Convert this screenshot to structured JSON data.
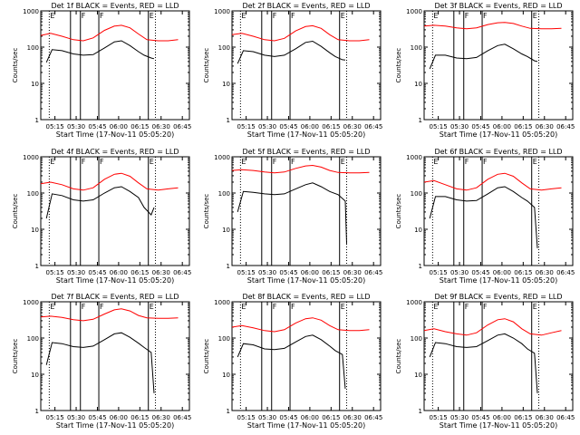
{
  "figure": {
    "start_time_label": "Start Time (17-Nov-11 05:05:20)"
  },
  "chart_data": [
    {
      "type": "line",
      "detector": "1f",
      "title": "Det 1f BLACK = Events, RED = LLD",
      "xlabel": "Start Time (17-Nov-11 05:05:20)",
      "ylabel": "Counts/sec",
      "yscale": "log",
      "ylim": [
        1,
        1000
      ],
      "yticks": [
        "1",
        "10",
        "100",
        "1000"
      ],
      "xticks": [
        "05:15",
        "05:30",
        "05:45",
        "06:00",
        "06:15",
        "06:30",
        "06:45"
      ],
      "region_markers": [
        "E",
        "F",
        "F",
        "E"
      ],
      "series": [
        {
          "name": "Events",
          "color": "#000000",
          "x": [
            "05:09",
            "05:13",
            "05:20",
            "05:28",
            "05:35",
            "05:42",
            "05:50",
            "05:57",
            "06:02",
            "06:08",
            "06:14",
            "06:18",
            "06:23",
            "06:25"
          ],
          "y": [
            38,
            85,
            80,
            65,
            60,
            62,
            95,
            140,
            150,
            110,
            75,
            60,
            50,
            48
          ]
        },
        {
          "name": "LLD",
          "color": "#ff0000",
          "x": [
            "05:05",
            "05:12",
            "05:20",
            "05:28",
            "05:35",
            "05:42",
            "05:50",
            "05:57",
            "06:02",
            "06:08",
            "06:14",
            "06:20",
            "06:28",
            "06:35",
            "06:42"
          ],
          "y": [
            210,
            240,
            200,
            160,
            150,
            180,
            290,
            380,
            400,
            340,
            230,
            160,
            150,
            150,
            160
          ]
        }
      ]
    },
    {
      "type": "line",
      "detector": "2f",
      "title": "Det 2f BLACK = Events, RED = LLD",
      "xlabel": "Start Time (17-Nov-11 05:05:20)",
      "ylabel": "Counts/sec",
      "yscale": "log",
      "ylim": [
        1,
        1000
      ],
      "yticks": [
        "1",
        "10",
        "100",
        "1000"
      ],
      "xticks": [
        "05:15",
        "05:30",
        "05:45",
        "06:00",
        "06:15",
        "06:30",
        "06:45"
      ],
      "region_markers": [
        "E",
        "F",
        "F",
        "E"
      ],
      "series": [
        {
          "name": "Events",
          "color": "#000000",
          "x": [
            "05:09",
            "05:13",
            "05:20",
            "05:28",
            "05:35",
            "05:42",
            "05:50",
            "05:57",
            "06:02",
            "06:08",
            "06:14",
            "06:18",
            "06:23",
            "06:25"
          ],
          "y": [
            35,
            80,
            75,
            60,
            55,
            60,
            90,
            135,
            145,
            105,
            70,
            55,
            45,
            44
          ]
        },
        {
          "name": "LLD",
          "color": "#ff0000",
          "x": [
            "05:05",
            "05:12",
            "05:20",
            "05:28",
            "05:35",
            "05:42",
            "05:50",
            "05:57",
            "06:02",
            "06:08",
            "06:14",
            "06:20",
            "06:28",
            "06:35",
            "06:42"
          ],
          "y": [
            220,
            240,
            200,
            160,
            150,
            175,
            280,
            370,
            390,
            330,
            220,
            160,
            150,
            150,
            160
          ]
        }
      ]
    },
    {
      "type": "line",
      "detector": "3f",
      "title": "Det 3f BLACK = Events, RED = LLD",
      "xlabel": "Start Time (17-Nov-11 05:05:20)",
      "ylabel": "Counts/sec",
      "yscale": "log",
      "ylim": [
        1,
        1000
      ],
      "yticks": [
        "1",
        "10",
        "100",
        "1000"
      ],
      "xticks": [
        "05:15",
        "05:30",
        "05:45",
        "06:00",
        "06:15",
        "06:30",
        "06:45"
      ],
      "region_markers": [
        "E",
        "F",
        "F",
        "E"
      ],
      "series": [
        {
          "name": "Events",
          "color": "#000000",
          "x": [
            "05:09",
            "05:13",
            "05:20",
            "05:28",
            "05:35",
            "05:42",
            "05:50",
            "05:57",
            "06:02",
            "06:08",
            "06:14",
            "06:18",
            "06:23",
            "06:25"
          ],
          "y": [
            25,
            60,
            60,
            50,
            48,
            52,
            80,
            110,
            120,
            90,
            65,
            55,
            42,
            40
          ]
        },
        {
          "name": "LLD",
          "color": "#ff0000",
          "x": [
            "05:05",
            "05:12",
            "05:20",
            "05:28",
            "05:35",
            "05:42",
            "05:50",
            "05:57",
            "06:02",
            "06:08",
            "06:14",
            "06:20",
            "06:28",
            "06:35",
            "06:42"
          ],
          "y": [
            380,
            400,
            380,
            340,
            320,
            340,
            420,
            470,
            480,
            450,
            380,
            330,
            320,
            320,
            330
          ]
        }
      ]
    },
    {
      "type": "line",
      "detector": "4f",
      "title": "Det 4f BLACK = Events, RED = LLD",
      "xlabel": "Start Time (17-Nov-11 05:05:20)",
      "ylabel": "Counts/sec",
      "yscale": "log",
      "ylim": [
        1,
        1000
      ],
      "yticks": [
        "1",
        "10",
        "100",
        "1000"
      ],
      "xticks": [
        "05:15",
        "05:30",
        "05:45",
        "06:00",
        "06:15",
        "06:30",
        "06:45"
      ],
      "region_markers": [
        "E",
        "F",
        "F",
        "E"
      ],
      "series": [
        {
          "name": "Events",
          "color": "#000000",
          "x": [
            "05:09",
            "05:13",
            "05:20",
            "05:28",
            "05:35",
            "05:42",
            "05:50",
            "05:57",
            "06:02",
            "06:08",
            "06:14",
            "06:18",
            "06:23",
            "06:25"
          ],
          "y": [
            20,
            95,
            85,
            65,
            60,
            65,
            100,
            140,
            150,
            110,
            75,
            40,
            25,
            40
          ]
        },
        {
          "name": "LLD",
          "color": "#ff0000",
          "x": [
            "05:05",
            "05:12",
            "05:20",
            "05:28",
            "05:35",
            "05:42",
            "05:50",
            "05:57",
            "06:02",
            "06:08",
            "06:14",
            "06:20",
            "06:28",
            "06:35",
            "06:42"
          ],
          "y": [
            180,
            200,
            170,
            130,
            120,
            140,
            240,
            330,
            350,
            290,
            190,
            130,
            120,
            130,
            140
          ]
        }
      ]
    },
    {
      "type": "line",
      "detector": "5f",
      "title": "Det 5f BLACK = Events, RED = LLD",
      "xlabel": "Start Time (17-Nov-11 05:05:20)",
      "ylabel": "Counts/sec",
      "yscale": "log",
      "ylim": [
        1,
        1000
      ],
      "yticks": [
        "1",
        "10",
        "100",
        "1000"
      ],
      "xticks": [
        "05:15",
        "05:30",
        "05:45",
        "06:00",
        "06:15",
        "06:30",
        "06:45"
      ],
      "region_markers": [
        "E",
        "F",
        "F",
        "E"
      ],
      "series": [
        {
          "name": "Events",
          "color": "#000000",
          "x": [
            "05:09",
            "05:13",
            "05:20",
            "05:28",
            "05:35",
            "05:42",
            "05:50",
            "05:57",
            "06:02",
            "06:08",
            "06:14",
            "06:20",
            "06:25",
            "06:26"
          ],
          "y": [
            30,
            110,
            105,
            95,
            90,
            95,
            130,
            170,
            190,
            150,
            110,
            90,
            60,
            4
          ]
        },
        {
          "name": "LLD",
          "color": "#ff0000",
          "x": [
            "05:05",
            "05:12",
            "05:20",
            "05:28",
            "05:35",
            "05:42",
            "05:50",
            "05:57",
            "06:02",
            "06:08",
            "06:14",
            "06:20",
            "06:28",
            "06:35",
            "06:42"
          ],
          "y": [
            420,
            440,
            420,
            380,
            360,
            380,
            480,
            560,
            580,
            520,
            420,
            370,
            360,
            360,
            370
          ]
        }
      ]
    },
    {
      "type": "line",
      "detector": "6f",
      "title": "Det 6f BLACK = Events, RED = LLD",
      "xlabel": "Start Time (17-Nov-11 05:05:20)",
      "ylabel": "Counts/sec",
      "yscale": "log",
      "ylim": [
        1,
        1000
      ],
      "yticks": [
        "1",
        "10",
        "100",
        "1000"
      ],
      "xticks": [
        "05:15",
        "05:30",
        "05:45",
        "06:00",
        "06:15",
        "06:30",
        "06:45"
      ],
      "region_markers": [
        "E",
        "F",
        "F",
        "E"
      ],
      "series": [
        {
          "name": "Events",
          "color": "#000000",
          "x": [
            "05:09",
            "05:13",
            "05:20",
            "05:28",
            "05:35",
            "05:42",
            "05:50",
            "05:57",
            "06:02",
            "06:08",
            "06:14",
            "06:18",
            "06:23",
            "06:25"
          ],
          "y": [
            20,
            80,
            80,
            65,
            60,
            62,
            95,
            140,
            150,
            110,
            75,
            60,
            40,
            3
          ]
        },
        {
          "name": "LLD",
          "color": "#ff0000",
          "x": [
            "05:05",
            "05:12",
            "05:20",
            "05:28",
            "05:35",
            "05:42",
            "05:50",
            "05:57",
            "06:02",
            "06:08",
            "06:14",
            "06:20",
            "06:28",
            "06:35",
            "06:42"
          ],
          "y": [
            200,
            220,
            170,
            130,
            120,
            140,
            240,
            330,
            350,
            290,
            190,
            130,
            120,
            130,
            140
          ]
        }
      ]
    },
    {
      "type": "line",
      "detector": "7f",
      "title": "Det 7f BLACK = Events, RED = LLD",
      "xlabel": "Start Time (17-Nov-11 05:05:20)",
      "ylabel": "Counts/sec",
      "yscale": "log",
      "ylim": [
        1,
        1000
      ],
      "yticks": [
        "1",
        "10",
        "100",
        "1000"
      ],
      "xticks": [
        "05:15",
        "05:30",
        "05:45",
        "06:00",
        "06:15",
        "06:30",
        "06:45"
      ],
      "region_markers": [
        "E",
        "F",
        "F",
        "E"
      ],
      "series": [
        {
          "name": "Events",
          "color": "#000000",
          "x": [
            "05:09",
            "05:13",
            "05:20",
            "05:28",
            "05:35",
            "05:42",
            "05:50",
            "05:57",
            "06:02",
            "06:08",
            "06:14",
            "06:18",
            "06:23",
            "06:25"
          ],
          "y": [
            18,
            75,
            70,
            58,
            55,
            60,
            90,
            130,
            140,
            105,
            72,
            55,
            40,
            3
          ]
        },
        {
          "name": "LLD",
          "color": "#ff0000",
          "x": [
            "05:05",
            "05:12",
            "05:20",
            "05:28",
            "05:35",
            "05:42",
            "05:50",
            "05:57",
            "06:02",
            "06:08",
            "06:14",
            "06:20",
            "06:28",
            "06:35",
            "06:42"
          ],
          "y": [
            380,
            400,
            370,
            320,
            300,
            330,
            460,
            600,
            640,
            560,
            420,
            360,
            350,
            350,
            360
          ]
        }
      ]
    },
    {
      "type": "line",
      "detector": "8f",
      "title": "Det 8f BLACK = Events, RED = LLD",
      "xlabel": "Start Time (17-Nov-11 05:05:20)",
      "ylabel": "Counts/sec",
      "yscale": "log",
      "ylim": [
        1,
        1000
      ],
      "yticks": [
        "1",
        "10",
        "100",
        "1000"
      ],
      "xticks": [
        "05:15",
        "05:30",
        "05:45",
        "06:00",
        "06:15",
        "06:30",
        "06:45"
      ],
      "region_markers": [
        "E",
        "F",
        "F",
        "E"
      ],
      "series": [
        {
          "name": "Events",
          "color": "#000000",
          "x": [
            "05:09",
            "05:13",
            "05:20",
            "05:28",
            "05:35",
            "05:42",
            "05:50",
            "05:57",
            "06:02",
            "06:08",
            "06:14",
            "06:18",
            "06:23",
            "06:25"
          ],
          "y": [
            30,
            70,
            65,
            50,
            48,
            52,
            78,
            110,
            120,
            90,
            60,
            45,
            35,
            4
          ]
        },
        {
          "name": "LLD",
          "color": "#ff0000",
          "x": [
            "05:05",
            "05:12",
            "05:20",
            "05:28",
            "05:35",
            "05:42",
            "05:50",
            "05:57",
            "06:02",
            "06:08",
            "06:14",
            "06:20",
            "06:28",
            "06:35",
            "06:42"
          ],
          "y": [
            200,
            220,
            190,
            160,
            150,
            170,
            260,
            340,
            360,
            310,
            220,
            170,
            160,
            160,
            170
          ]
        }
      ]
    },
    {
      "type": "line",
      "detector": "9f",
      "title": "Det 9f BLACK = Events, RED = LLD",
      "xlabel": "Start Time (17-Nov-11 05:05:20)",
      "ylabel": "Counts/sec",
      "yscale": "log",
      "ylim": [
        1,
        1000
      ],
      "yticks": [
        "1",
        "10",
        "100",
        "1000"
      ],
      "xticks": [
        "05:15",
        "05:30",
        "05:45",
        "06:00",
        "06:15",
        "06:30",
        "06:45"
      ],
      "region_markers": [
        "E",
        "F",
        "F",
        "E"
      ],
      "series": [
        {
          "name": "Events",
          "color": "#000000",
          "x": [
            "05:09",
            "05:13",
            "05:20",
            "05:28",
            "05:35",
            "05:42",
            "05:50",
            "05:57",
            "06:02",
            "06:08",
            "06:14",
            "06:18",
            "06:23",
            "06:25"
          ],
          "y": [
            30,
            75,
            70,
            58,
            55,
            58,
            85,
            120,
            130,
            100,
            70,
            50,
            38,
            3
          ]
        },
        {
          "name": "LLD",
          "color": "#ff0000",
          "x": [
            "05:05",
            "05:12",
            "05:20",
            "05:28",
            "05:35",
            "05:42",
            "05:50",
            "05:57",
            "06:02",
            "06:08",
            "06:14",
            "06:20",
            "06:28",
            "06:35",
            "06:42"
          ],
          "y": [
            160,
            180,
            150,
            130,
            120,
            140,
            230,
            320,
            340,
            280,
            180,
            130,
            120,
            140,
            160
          ]
        }
      ]
    }
  ]
}
